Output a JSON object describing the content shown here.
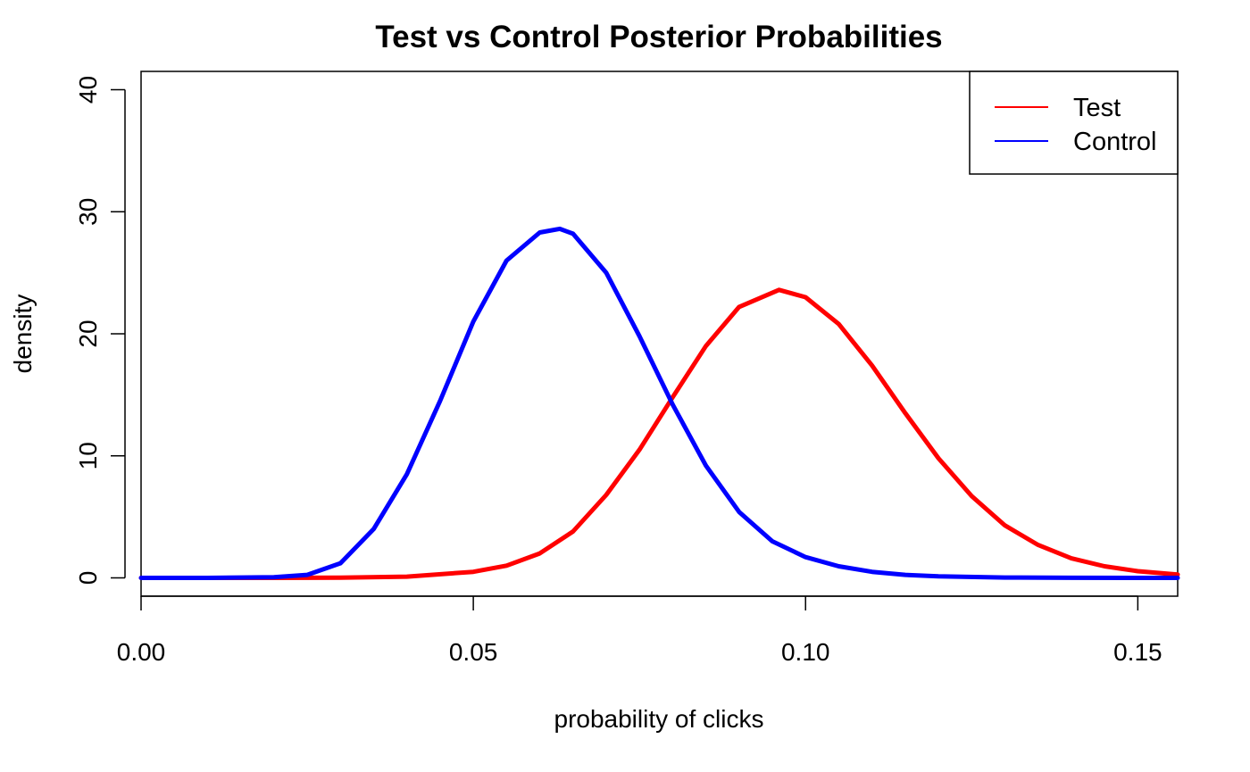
{
  "chart_data": {
    "type": "line",
    "title": "Test vs Control Posterior Probabilities",
    "xlabel": "probability of clicks",
    "ylabel": "density",
    "xlim": [
      0,
      0.156
    ],
    "ylim": [
      -1.5,
      41.5
    ],
    "x_ticks": [
      0.0,
      0.05,
      0.1,
      0.15
    ],
    "x_tick_labels": [
      "0.00",
      "0.05",
      "0.10",
      "0.15"
    ],
    "y_ticks": [
      0,
      10,
      20,
      30,
      40
    ],
    "y_tick_labels": [
      "0",
      "10",
      "20",
      "30",
      "40"
    ],
    "grid": false,
    "legend_position": "top-right",
    "series": [
      {
        "name": "Test",
        "color": "#ff0000",
        "x": [
          0.0,
          0.01,
          0.02,
          0.03,
          0.04,
          0.05,
          0.055,
          0.06,
          0.065,
          0.07,
          0.075,
          0.08,
          0.085,
          0.09,
          0.096,
          0.1,
          0.105,
          0.11,
          0.115,
          0.12,
          0.125,
          0.13,
          0.135,
          0.14,
          0.145,
          0.15,
          0.156
        ],
        "y": [
          0,
          0,
          0,
          0.02,
          0.1,
          0.5,
          1.0,
          2.0,
          3.8,
          6.8,
          10.5,
          14.8,
          19.0,
          22.2,
          23.6,
          23.0,
          20.8,
          17.4,
          13.5,
          9.8,
          6.7,
          4.3,
          2.7,
          1.6,
          0.95,
          0.55,
          0.28
        ]
      },
      {
        "name": "Control",
        "color": "#0000ff",
        "x": [
          0.0,
          0.01,
          0.02,
          0.025,
          0.03,
          0.035,
          0.04,
          0.045,
          0.05,
          0.055,
          0.06,
          0.063,
          0.065,
          0.07,
          0.075,
          0.08,
          0.085,
          0.09,
          0.095,
          0.1,
          0.105,
          0.11,
          0.115,
          0.12,
          0.13,
          0.14,
          0.15,
          0.156
        ],
        "y": [
          0,
          0,
          0.05,
          0.25,
          1.2,
          4.0,
          8.5,
          14.5,
          21.0,
          26.0,
          28.3,
          28.6,
          28.2,
          25.0,
          19.8,
          14.2,
          9.2,
          5.4,
          3.0,
          1.7,
          0.95,
          0.5,
          0.25,
          0.13,
          0.03,
          0.01,
          0,
          0
        ]
      }
    ]
  }
}
